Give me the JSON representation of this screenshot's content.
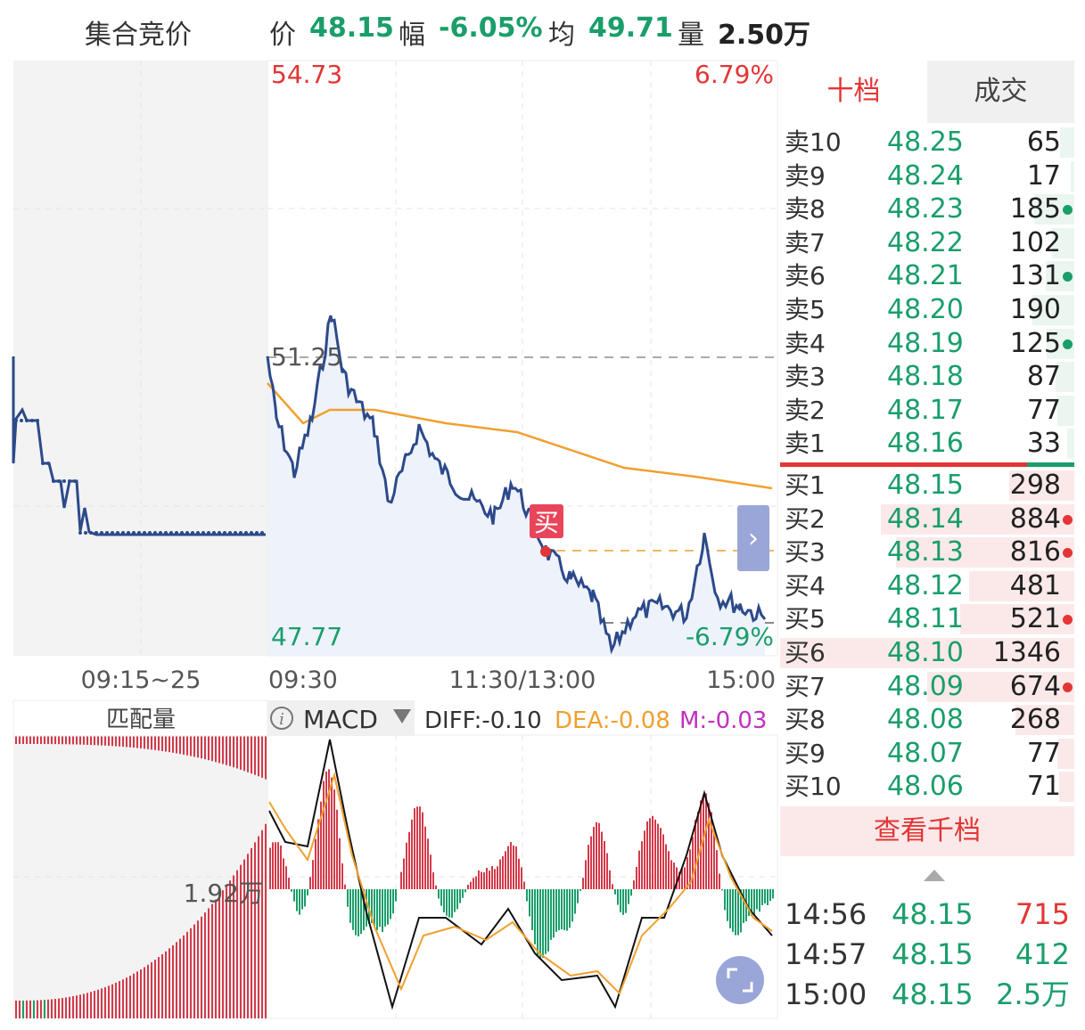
{
  "header": {
    "auction_label": "集合竞价",
    "price_label": "价",
    "price": "48.15",
    "change_label": "幅",
    "change": "-6.05%",
    "avg_label": "均",
    "avg": "49.71",
    "volume_label": "量",
    "volume": "2.50万"
  },
  "main_chart": {
    "top_price": "54.73",
    "top_pct": "6.79%",
    "ref_price": "51.25",
    "bottom_price": "47.77",
    "bottom_pct": "-6.79%",
    "buy_marker": "买",
    "expand_icon": "chevron-right-icon"
  },
  "time_axis": {
    "pre_market": "09:15~25",
    "open": "09:30",
    "mid": "11:30/13:00",
    "close": "15:00"
  },
  "auction_panel": {
    "title": "匹配量",
    "volume_label": "1.92万"
  },
  "indicator": {
    "info_icon": "info-icon",
    "name": "MACD",
    "diff": "DIFF:-0.10",
    "dea": "DEA:-0.08",
    "m": "M:-0.03",
    "fullscreen_icon": "fullscreen-icon"
  },
  "order_book": {
    "tabs": [
      "十档",
      "成交"
    ],
    "active_tab": "十档",
    "asks": [
      {
        "label": "卖10",
        "price": "48.25",
        "volume": "65",
        "dot": ""
      },
      {
        "label": "卖9",
        "price": "48.24",
        "volume": "17",
        "dot": ""
      },
      {
        "label": "卖8",
        "price": "48.23",
        "volume": "185",
        "dot": "green"
      },
      {
        "label": "卖7",
        "price": "48.22",
        "volume": "102",
        "dot": ""
      },
      {
        "label": "卖6",
        "price": "48.21",
        "volume": "131",
        "dot": "green"
      },
      {
        "label": "卖5",
        "price": "48.20",
        "volume": "190",
        "dot": ""
      },
      {
        "label": "卖4",
        "price": "48.19",
        "volume": "125",
        "dot": "green"
      },
      {
        "label": "卖3",
        "price": "48.18",
        "volume": "87",
        "dot": ""
      },
      {
        "label": "卖2",
        "price": "48.17",
        "volume": "77",
        "dot": ""
      },
      {
        "label": "卖1",
        "price": "48.16",
        "volume": "33",
        "dot": ""
      }
    ],
    "bids": [
      {
        "label": "买1",
        "price": "48.15",
        "volume": "298",
        "dot": ""
      },
      {
        "label": "买2",
        "price": "48.14",
        "volume": "884",
        "dot": "red"
      },
      {
        "label": "买3",
        "price": "48.13",
        "volume": "816",
        "dot": "red"
      },
      {
        "label": "买4",
        "price": "48.12",
        "volume": "481",
        "dot": ""
      },
      {
        "label": "买5",
        "price": "48.11",
        "volume": "521",
        "dot": "red"
      },
      {
        "label": "买6",
        "price": "48.10",
        "volume": "1346",
        "dot": ""
      },
      {
        "label": "买7",
        "price": "48.09",
        "volume": "674",
        "dot": "red"
      },
      {
        "label": "买8",
        "price": "48.08",
        "volume": "268",
        "dot": ""
      },
      {
        "label": "买9",
        "price": "48.07",
        "volume": "77",
        "dot": ""
      },
      {
        "label": "买10",
        "price": "48.06",
        "volume": "71",
        "dot": ""
      }
    ],
    "view_more": "查看千档",
    "collapse_icon": "triangle-up-icon"
  },
  "trades": [
    {
      "time": "14:56",
      "price": "48.15",
      "volume": "715",
      "color": "red"
    },
    {
      "time": "14:57",
      "price": "48.15",
      "volume": "412",
      "color": "green"
    },
    {
      "time": "15:00",
      "price": "48.15",
      "volume": "2.5万",
      "color": "green"
    }
  ],
  "colors": {
    "up": "#e33535",
    "down": "#1a9e6a",
    "price_line": "#2c4a8a",
    "avg_line": "#f0a030",
    "dea_line": "#f0a030",
    "m_color": "#c030c0"
  }
}
